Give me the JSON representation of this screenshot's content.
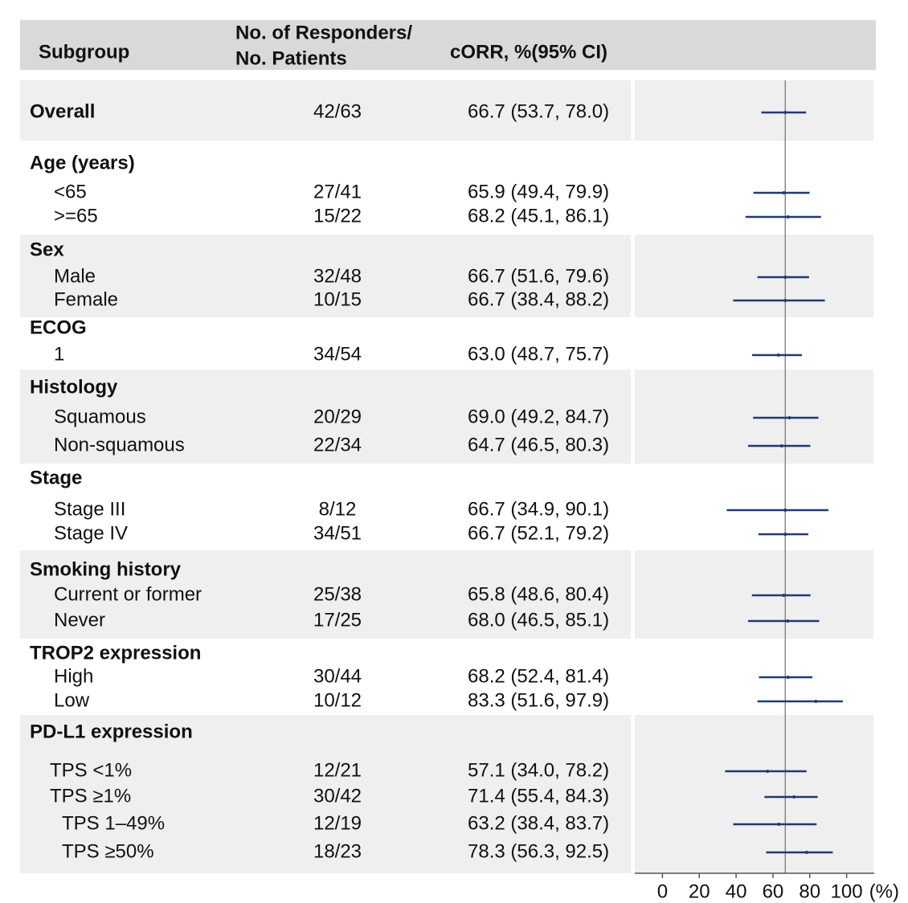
{
  "chart_data": {
    "type": "forest",
    "headers": {
      "subgroup": "Subgroup",
      "n": [
        "No. of Responders/",
        "No. Patients"
      ],
      "ci": "cORR, %(95% CI)"
    },
    "xlim": [
      -15,
      115
    ],
    "xticks": [
      0,
      20,
      40,
      60,
      80,
      100
    ],
    "x_axis_label": "(%)",
    "color": "#1f3a7a",
    "groups": [
      {
        "label": "Overall",
        "n": "42/63",
        "ci_label": "66.7 (53.7, 78.0)",
        "estimate": 66.7,
        "lower": 53.7,
        "upper": 78.0
      },
      {
        "label": "Age (years)",
        "rows": [
          {
            "label": "<65",
            "n": "27/41",
            "ci_label": "65.9 (49.4, 79.9)",
            "estimate": 65.9,
            "lower": 49.4,
            "upper": 79.9
          },
          {
            "label": ">=65",
            "n": "15/22",
            "ci_label": "68.2 (45.1, 86.1)",
            "estimate": 68.2,
            "lower": 45.1,
            "upper": 86.1
          }
        ]
      },
      {
        "label": "Sex",
        "rows": [
          {
            "label": "Male",
            "n": "32/48",
            "ci_label": "66.7 (51.6, 79.6)",
            "estimate": 66.7,
            "lower": 51.6,
            "upper": 79.6
          },
          {
            "label": "Female",
            "n": "10/15",
            "ci_label": "66.7 (38.4, 88.2)",
            "estimate": 66.7,
            "lower": 38.4,
            "upper": 88.2
          }
        ]
      },
      {
        "label": "ECOG",
        "rows": [
          {
            "label": "1",
            "n": "34/54",
            "ci_label": "63.0 (48.7, 75.7)",
            "estimate": 63.0,
            "lower": 48.7,
            "upper": 75.7
          }
        ]
      },
      {
        "label": "Histology",
        "rows": [
          {
            "label": "Squamous",
            "n": "20/29",
            "ci_label": "69.0 (49.2, 84.7)",
            "estimate": 69.0,
            "lower": 49.2,
            "upper": 84.7
          },
          {
            "label": "Non-squamous",
            "n": "22/34",
            "ci_label": "64.7 (46.5, 80.3)",
            "estimate": 64.7,
            "lower": 46.5,
            "upper": 80.3
          }
        ]
      },
      {
        "label": "Stage",
        "rows": [
          {
            "label": "Stage III",
            "n": "8/12",
            "ci_label": "66.7 (34.9, 90.1)",
            "estimate": 66.7,
            "lower": 34.9,
            "upper": 90.1
          },
          {
            "label": "Stage IV",
            "n": "34/51",
            "ci_label": "66.7 (52.1, 79.2)",
            "estimate": 66.7,
            "lower": 52.1,
            "upper": 79.2
          }
        ]
      },
      {
        "label": "Smoking history",
        "rows": [
          {
            "label": "Current or former",
            "n": "25/38",
            "ci_label": "65.8 (48.6, 80.4)",
            "estimate": 65.8,
            "lower": 48.6,
            "upper": 80.4
          },
          {
            "label": "Never",
            "n": "17/25",
            "ci_label": "68.0 (46.5, 85.1)",
            "estimate": 68.0,
            "lower": 46.5,
            "upper": 85.1
          }
        ]
      },
      {
        "label": "TROP2 expression",
        "rows": [
          {
            "label": "High",
            "n": "30/44",
            "ci_label": "68.2 (52.4, 81.4)",
            "estimate": 68.2,
            "lower": 52.4,
            "upper": 81.4
          },
          {
            "label": "Low",
            "n": "10/12",
            "ci_label": "83.3 (51.6, 97.9)",
            "estimate": 83.3,
            "lower": 51.6,
            "upper": 97.9
          }
        ]
      },
      {
        "label": "PD-L1 expression",
        "rows": [
          {
            "label": "TPS <1%",
            "n": "12/21",
            "ci_label": "57.1 (34.0, 78.2)",
            "estimate": 57.1,
            "lower": 34.0,
            "upper": 78.2
          },
          {
            "label": "TPS ≥1%",
            "n": "30/42",
            "ci_label": "71.4 (55.4, 84.3)",
            "estimate": 71.4,
            "lower": 55.4,
            "upper": 84.3
          },
          {
            "label": "TPS 1–49%",
            "n": "12/19",
            "ci_label": "63.2 (38.4, 83.7)",
            "estimate": 63.2,
            "lower": 38.4,
            "upper": 83.7
          },
          {
            "label": "TPS ≥50%",
            "n": "18/23",
            "ci_label": "78.3 (56.3, 92.5)",
            "estimate": 78.3,
            "lower": 56.3,
            "upper": 92.5
          }
        ]
      }
    ]
  }
}
